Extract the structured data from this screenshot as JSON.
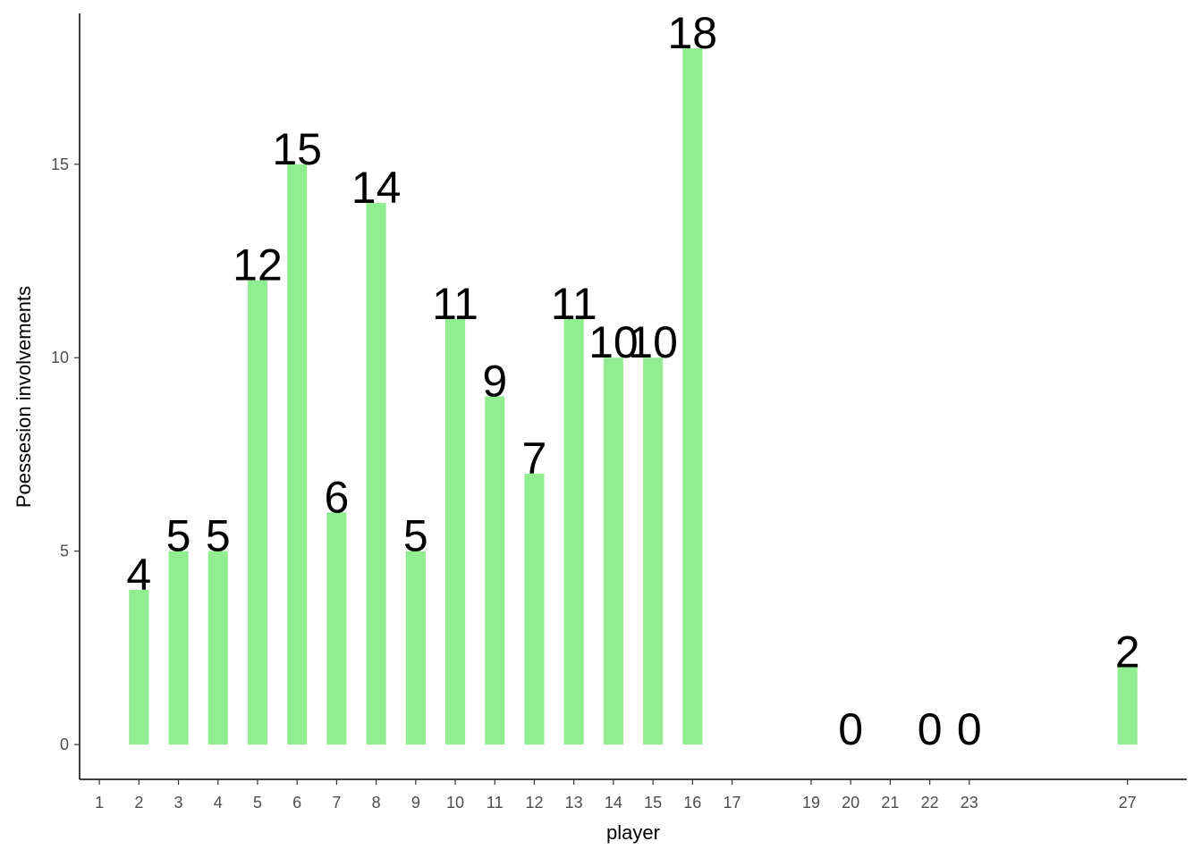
{
  "chart_data": {
    "type": "bar",
    "x_label": "player",
    "y_label": "Poessesion involvements",
    "x": [
      2,
      3,
      4,
      5,
      6,
      7,
      8,
      9,
      10,
      11,
      12,
      13,
      14,
      15,
      16,
      20,
      22,
      23,
      27
    ],
    "values": [
      4,
      5,
      5,
      12,
      15,
      6,
      14,
      5,
      11,
      9,
      7,
      11,
      10,
      10,
      18,
      0,
      0,
      0,
      2
    ],
    "color": "#90ee90",
    "xlim": [
      0.5,
      28.5
    ],
    "xticks": [
      1,
      2,
      3,
      4,
      5,
      6,
      7,
      8,
      9,
      10,
      11,
      12,
      13,
      14,
      15,
      16,
      17,
      19,
      20,
      21,
      22,
      23,
      27
    ],
    "ylim": [
      -0.9,
      18.9
    ],
    "yticks": [
      0,
      5,
      10,
      15
    ],
    "grid": false
  }
}
